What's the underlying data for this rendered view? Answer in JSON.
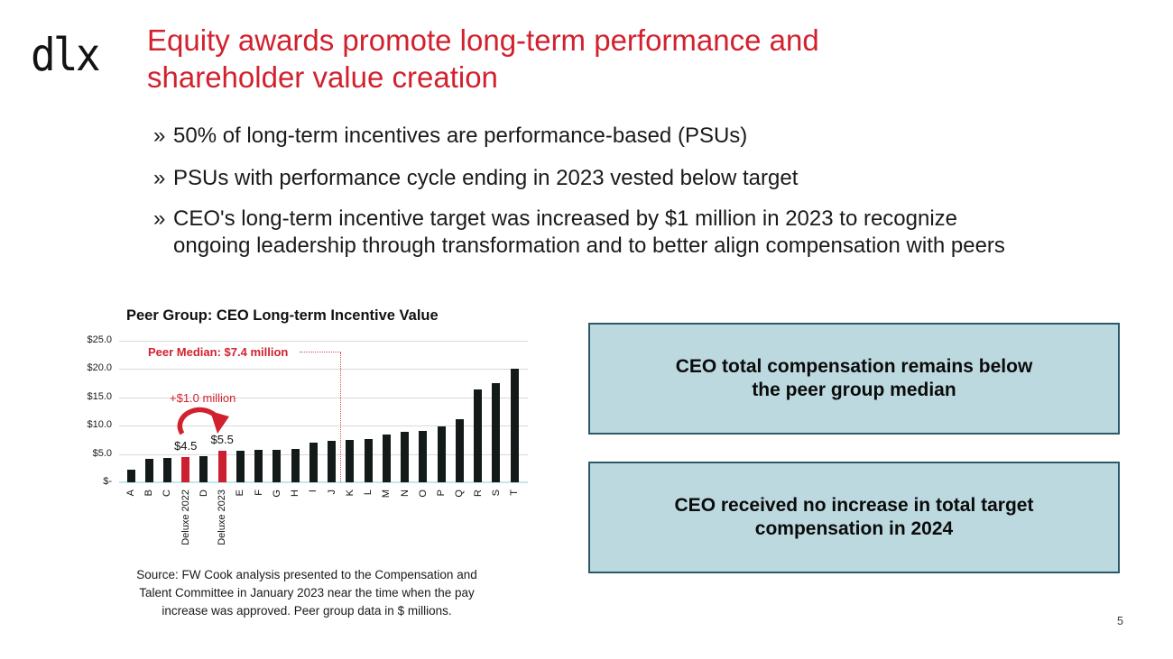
{
  "slide": {
    "logo_text": "dlx",
    "page_number": "5",
    "title_lines": [
      "Equity awards promote long-term performance and",
      "shareholder value creation"
    ],
    "bullet_marker": "»",
    "bullets": [
      {
        "lines": [
          "50% of long-term incentives are performance-based (PSUs)"
        ]
      },
      {
        "lines": [
          "PSUs with performance cycle ending in 2023 vested below target"
        ]
      },
      {
        "lines": [
          "CEO's long-term incentive target was increased by $1 million in 2023 to recognize",
          "ongoing leadership through transformation and to better align compensation with peers"
        ]
      }
    ],
    "source_lines": [
      "Source: FW Cook analysis presented to the Compensation and",
      "Talent Committee in January 2023 near the time when the pay",
      "increase was approved. Peer group data in $ millions."
    ],
    "callouts": [
      {
        "lines": [
          "CEO total compensation remains below",
          "the peer group median"
        ]
      },
      {
        "lines": [
          "CEO received no increase in total target",
          "compensation in 2024"
        ]
      }
    ]
  },
  "colors": {
    "title_red": "#d2212e",
    "bar_red": "#cc2030",
    "bar_dark": "#141a19",
    "gridline": "#d9d9d9",
    "axis_baseline": "#bfe9ec",
    "callout_fill": "#bcd9e0",
    "callout_border": "#2b5968",
    "body_text": "#1a1a1a"
  },
  "chart_data": {
    "type": "bar",
    "title": "Peer Group: CEO Long-term Incentive Value",
    "categories": [
      "A",
      "B",
      "C",
      "Deluxe 2022",
      "D",
      "Deluxe 2023",
      "E",
      "F",
      "G",
      "H",
      "I",
      "J",
      "K",
      "L",
      "M",
      "N",
      "O",
      "P",
      "Q",
      "R",
      "S",
      "T"
    ],
    "values": [
      2.2,
      4.1,
      4.3,
      4.5,
      4.6,
      5.5,
      5.6,
      5.7,
      5.8,
      5.9,
      7.0,
      7.3,
      7.5,
      7.7,
      8.4,
      8.9,
      9.1,
      9.9,
      11.2,
      16.4,
      17.5,
      20.0
    ],
    "highlight_categories": [
      "Deluxe 2022",
      "Deluxe 2023"
    ],
    "bar_value_labels": [
      {
        "category": "Deluxe 2022",
        "label": "$4.5"
      },
      {
        "category": "Deluxe 2023",
        "label": "$5.5"
      }
    ],
    "yticks": [
      {
        "label": "$25.0",
        "value": 25
      },
      {
        "label": "$20.0",
        "value": 20
      },
      {
        "label": "$15.0",
        "value": 15
      },
      {
        "label": "$10.0",
        "value": 10
      },
      {
        "label": "$5.0",
        "value": 5
      },
      {
        "label": "$-",
        "value": 0
      }
    ],
    "ylim": [
      0,
      25
    ],
    "grid": true,
    "legend": "none",
    "annotations": {
      "peer_median_label": "Peer Median: $7.4 million",
      "peer_median_value": 7.4,
      "increase_label": "+$1.0 million"
    }
  }
}
